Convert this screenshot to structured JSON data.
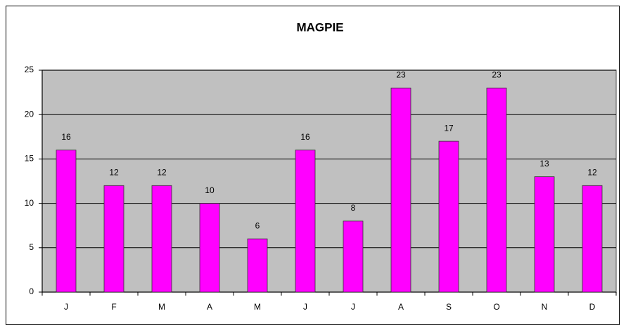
{
  "chart_data": {
    "type": "bar",
    "title": "MAGPIE",
    "categories": [
      "J",
      "F",
      "M",
      "A",
      "M",
      "J",
      "J",
      "A",
      "S",
      "O",
      "N",
      "D"
    ],
    "values": [
      16,
      12,
      12,
      10,
      6,
      16,
      8,
      23,
      17,
      23,
      13,
      12
    ],
    "color": "#ff00ff",
    "ylim": [
      0,
      25
    ],
    "yticks": [
      0,
      5,
      10,
      15,
      20,
      25
    ],
    "grid": true
  }
}
